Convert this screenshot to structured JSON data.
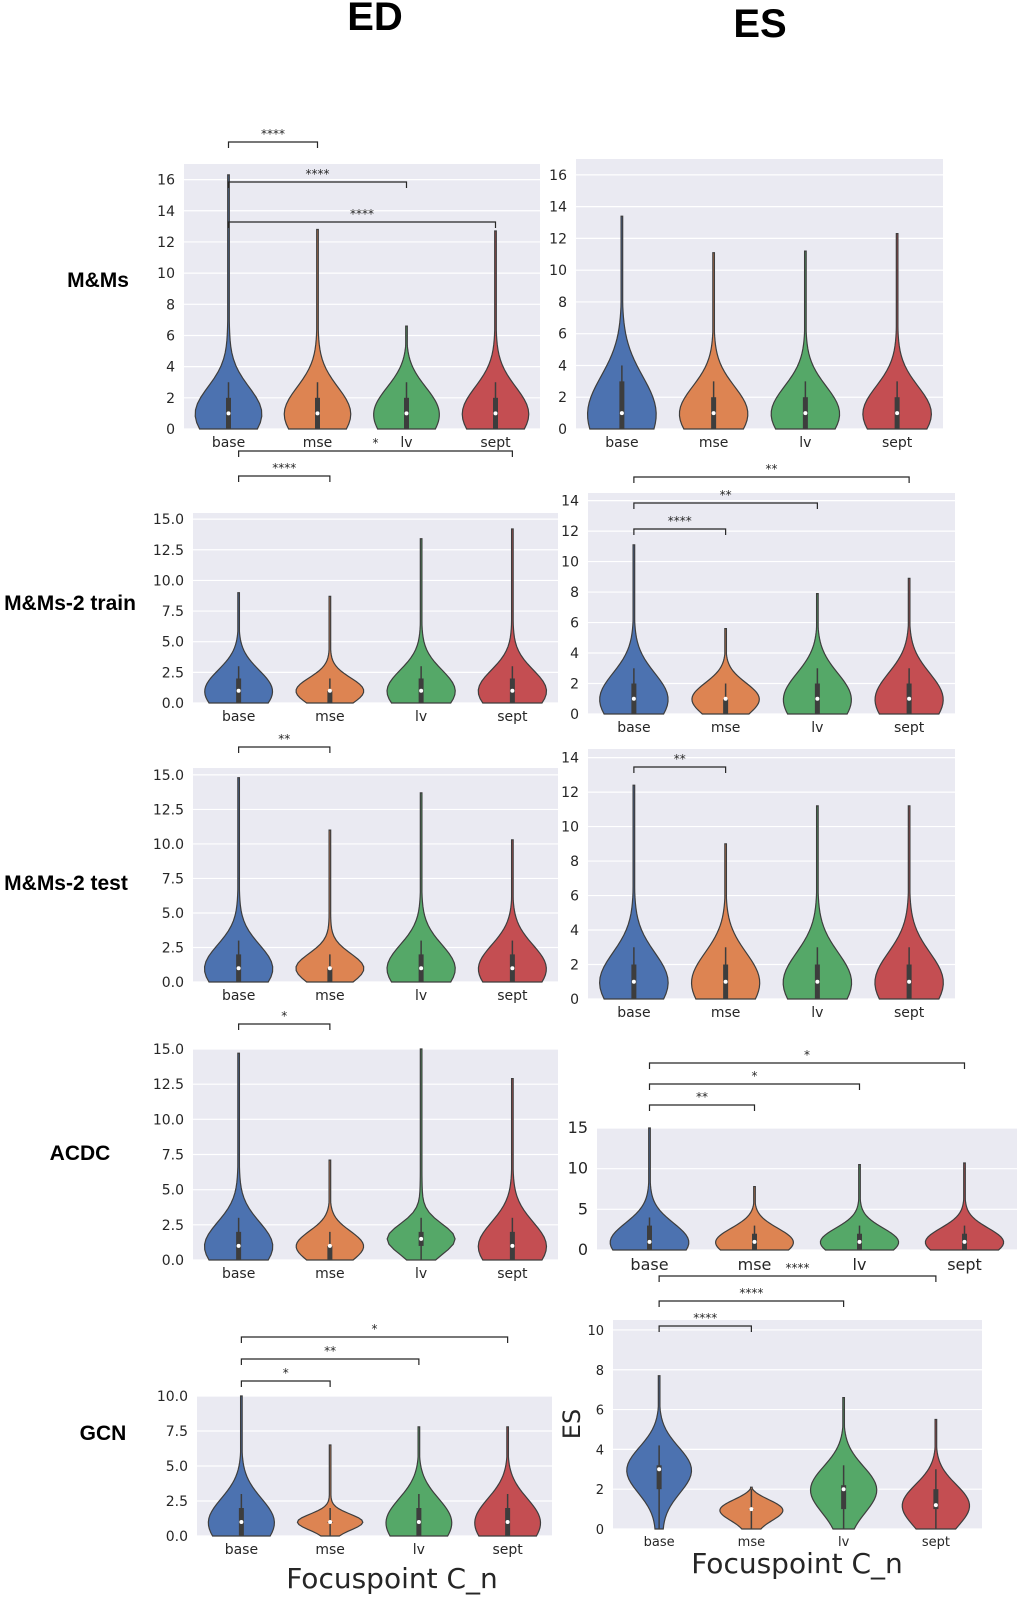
{
  "headers": {
    "ed": "ED",
    "es": "ES"
  },
  "row_labels": [
    "M&Ms",
    "M&Ms-2 train",
    "M&Ms-2 test",
    "ACDC",
    "GCN"
  ],
  "footer": {
    "xlabel_ed": "Focuspoint C_n",
    "xlabel_es": "Focuspoint C_n",
    "ylabel_es_gcn": "ES"
  },
  "colors": {
    "base": "#4c72b0",
    "mse": "#dd8452",
    "lv": "#55a868",
    "sept": "#c44e52",
    "panel_bg": "#eaeaf2",
    "grid": "#ffffff"
  },
  "chart_data": [
    {
      "id": "mms-ed",
      "type": "violin",
      "categories": [
        "base",
        "mse",
        "lv",
        "sept"
      ],
      "ylim": [
        0,
        17
      ],
      "yticks": [
        "0",
        "2",
        "4",
        "6",
        "8",
        "10",
        "12",
        "14",
        "16"
      ],
      "ytick_values": [
        0,
        2,
        4,
        6,
        8,
        10,
        12,
        14,
        16
      ],
      "series": [
        {
          "name": "base",
          "max": 16.3,
          "median": 1,
          "q1": 0,
          "q3": 2
        },
        {
          "name": "mse",
          "max": 12.8,
          "median": 1,
          "q1": 0,
          "q3": 2
        },
        {
          "name": "lv",
          "max": 6.6,
          "median": 1,
          "q1": 0,
          "q3": 2
        },
        {
          "name": "sept",
          "max": 12.7,
          "median": 1,
          "q1": 0,
          "q3": 2
        }
      ],
      "brackets": [
        {
          "from": "base",
          "to": "mse",
          "label": "****"
        },
        {
          "from": "base",
          "to": "lv",
          "label": "****"
        },
        {
          "from": "base",
          "to": "sept",
          "label": "****"
        }
      ]
    },
    {
      "id": "mms-es",
      "type": "violin",
      "categories": [
        "base",
        "mse",
        "lv",
        "sept"
      ],
      "ylim": [
        0,
        17
      ],
      "yticks": [
        "0",
        "2",
        "4",
        "6",
        "8",
        "10",
        "12",
        "14",
        "16"
      ],
      "ytick_values": [
        0,
        2,
        4,
        6,
        8,
        10,
        12,
        14,
        16
      ],
      "series": [
        {
          "name": "base",
          "max": 13.4,
          "median": 1,
          "q1": 0,
          "q3": 3
        },
        {
          "name": "mse",
          "max": 11.1,
          "median": 1,
          "q1": 0,
          "q3": 2
        },
        {
          "name": "lv",
          "max": 11.2,
          "median": 1,
          "q1": 0,
          "q3": 2
        },
        {
          "name": "sept",
          "max": 12.3,
          "median": 1,
          "q1": 0,
          "q3": 2
        }
      ],
      "brackets": []
    },
    {
      "id": "mms2train-ed",
      "type": "violin",
      "categories": [
        "base",
        "mse",
        "lv",
        "sept"
      ],
      "ylim": [
        0,
        15.5
      ],
      "yticks": [
        "0.0",
        "2.5",
        "5.0",
        "7.5",
        "10.0",
        "12.5",
        "15.0"
      ],
      "ytick_values": [
        0,
        2.5,
        5,
        7.5,
        10,
        12.5,
        15
      ],
      "series": [
        {
          "name": "base",
          "max": 9.0,
          "median": 1,
          "q1": 0,
          "q3": 2
        },
        {
          "name": "mse",
          "max": 8.7,
          "median": 1,
          "q1": 0,
          "q3": 1
        },
        {
          "name": "lv",
          "max": 13.4,
          "median": 1,
          "q1": 0,
          "q3": 2
        },
        {
          "name": "sept",
          "max": 14.2,
          "median": 1,
          "q1": 0,
          "q3": 2
        }
      ],
      "brackets": [
        {
          "from": "base",
          "to": "mse",
          "label": "****"
        },
        {
          "from": "base",
          "to": "sept",
          "label": "*"
        }
      ]
    },
    {
      "id": "mms2train-es",
      "type": "violin",
      "categories": [
        "base",
        "mse",
        "lv",
        "sept"
      ],
      "ylim": [
        0,
        14.5
      ],
      "yticks": [
        "0",
        "2",
        "4",
        "6",
        "8",
        "10",
        "12",
        "14"
      ],
      "ytick_values": [
        0,
        2,
        4,
        6,
        8,
        10,
        12,
        14
      ],
      "series": [
        {
          "name": "base",
          "max": 11.1,
          "median": 1,
          "q1": 0,
          "q3": 2
        },
        {
          "name": "mse",
          "max": 5.6,
          "median": 1,
          "q1": 0,
          "q3": 1
        },
        {
          "name": "lv",
          "max": 7.9,
          "median": 1,
          "q1": 0,
          "q3": 2
        },
        {
          "name": "sept",
          "max": 8.9,
          "median": 1,
          "q1": 0,
          "q3": 2
        }
      ],
      "brackets": [
        {
          "from": "base",
          "to": "mse",
          "label": "****"
        },
        {
          "from": "base",
          "to": "lv",
          "label": "**"
        },
        {
          "from": "base",
          "to": "sept",
          "label": "**"
        }
      ]
    },
    {
      "id": "mms2test-ed",
      "type": "violin",
      "categories": [
        "base",
        "mse",
        "lv",
        "sept"
      ],
      "ylim": [
        0,
        15.5
      ],
      "yticks": [
        "0.0",
        "2.5",
        "5.0",
        "7.5",
        "10.0",
        "12.5",
        "15.0"
      ],
      "ytick_values": [
        0,
        2.5,
        5,
        7.5,
        10,
        12.5,
        15
      ],
      "series": [
        {
          "name": "base",
          "max": 14.8,
          "median": 1,
          "q1": 0,
          "q3": 2
        },
        {
          "name": "mse",
          "max": 11.0,
          "median": 1,
          "q1": 0,
          "q3": 1
        },
        {
          "name": "lv",
          "max": 13.7,
          "median": 1,
          "q1": 0,
          "q3": 2
        },
        {
          "name": "sept",
          "max": 10.3,
          "median": 1,
          "q1": 0,
          "q3": 2
        }
      ],
      "brackets": [
        {
          "from": "base",
          "to": "mse",
          "label": "**"
        }
      ]
    },
    {
      "id": "mms2test-es",
      "type": "violin",
      "categories": [
        "base",
        "mse",
        "lv",
        "sept"
      ],
      "ylim": [
        0,
        14.5
      ],
      "yticks": [
        "0",
        "2",
        "4",
        "6",
        "8",
        "10",
        "12",
        "14"
      ],
      "ytick_values": [
        0,
        2,
        4,
        6,
        8,
        10,
        12,
        14
      ],
      "series": [
        {
          "name": "base",
          "max": 12.4,
          "median": 1,
          "q1": 0,
          "q3": 2
        },
        {
          "name": "mse",
          "max": 9.0,
          "median": 1,
          "q1": 0,
          "q3": 2
        },
        {
          "name": "lv",
          "max": 11.2,
          "median": 1,
          "q1": 0,
          "q3": 2
        },
        {
          "name": "sept",
          "max": 11.2,
          "median": 1,
          "q1": 0,
          "q3": 2
        }
      ],
      "brackets": [
        {
          "from": "base",
          "to": "mse",
          "label": "**"
        }
      ]
    },
    {
      "id": "acdc-ed",
      "type": "violin",
      "categories": [
        "base",
        "mse",
        "lv",
        "sept"
      ],
      "ylim": [
        0,
        15
      ],
      "yticks": [
        "0.0",
        "2.5",
        "5.0",
        "7.5",
        "10.0",
        "12.5",
        "15.0"
      ],
      "ytick_values": [
        0,
        2.5,
        5,
        7.5,
        10,
        12.5,
        15
      ],
      "series": [
        {
          "name": "base",
          "max": 14.7,
          "median": 1,
          "q1": 0,
          "q3": 2
        },
        {
          "name": "mse",
          "max": 7.1,
          "median": 1,
          "q1": 0,
          "q3": 1
        },
        {
          "name": "lv",
          "max": 15.0,
          "median": 1.5,
          "q1": 1,
          "q3": 2
        },
        {
          "name": "sept",
          "max": 12.9,
          "median": 1,
          "q1": 0,
          "q3": 2
        }
      ],
      "brackets": [
        {
          "from": "base",
          "to": "mse",
          "label": "*"
        }
      ]
    },
    {
      "id": "acdc-es",
      "type": "violin",
      "categories": [
        "base",
        "mse",
        "lv",
        "sept"
      ],
      "ylim": [
        0,
        15
      ],
      "yticks": [
        "0",
        "5",
        "10",
        "15"
      ],
      "ytick_values": [
        0,
        5,
        10,
        15
      ],
      "series": [
        {
          "name": "base",
          "max": 15.0,
          "median": 1,
          "q1": 0,
          "q3": 3
        },
        {
          "name": "mse",
          "max": 7.8,
          "median": 1,
          "q1": 0,
          "q3": 2
        },
        {
          "name": "lv",
          "max": 10.5,
          "median": 1,
          "q1": 0,
          "q3": 2
        },
        {
          "name": "sept",
          "max": 10.7,
          "median": 1,
          "q1": 0,
          "q3": 2
        }
      ],
      "brackets": [
        {
          "from": "base",
          "to": "mse",
          "label": "**"
        },
        {
          "from": "base",
          "to": "lv",
          "label": "*"
        },
        {
          "from": "base",
          "to": "sept",
          "label": "*"
        }
      ]
    },
    {
      "id": "gcn-ed",
      "type": "violin",
      "categories": [
        "base",
        "mse",
        "lv",
        "sept"
      ],
      "ylim": [
        0,
        10
      ],
      "yticks": [
        "0.0",
        "2.5",
        "5.0",
        "7.5",
        "10.0"
      ],
      "ytick_values": [
        0,
        2.5,
        5,
        7.5,
        10
      ],
      "series": [
        {
          "name": "base",
          "max": 10.0,
          "median": 1,
          "q1": 0,
          "q3": 2
        },
        {
          "name": "mse",
          "max": 6.5,
          "median": 1,
          "q1": 1,
          "q3": 1
        },
        {
          "name": "lv",
          "max": 7.8,
          "median": 1,
          "q1": 0,
          "q3": 2
        },
        {
          "name": "sept",
          "max": 7.8,
          "median": 1,
          "q1": 0,
          "q3": 2
        }
      ],
      "brackets": [
        {
          "from": "base",
          "to": "mse",
          "label": "*"
        },
        {
          "from": "base",
          "to": "lv",
          "label": "**"
        },
        {
          "from": "base",
          "to": "sept",
          "label": "*"
        }
      ]
    },
    {
      "id": "gcn-es",
      "type": "violin",
      "categories": [
        "base",
        "mse",
        "lv",
        "sept"
      ],
      "ylim": [
        0,
        10.5
      ],
      "yticks": [
        "0",
        "2",
        "4",
        "6",
        "8",
        "10"
      ],
      "ytick_values": [
        0,
        2,
        4,
        6,
        8,
        10
      ],
      "series": [
        {
          "name": "base",
          "max": 7.7,
          "median": 3,
          "q1": 2,
          "q3": 3.2
        },
        {
          "name": "mse",
          "max": 2.1,
          "median": 1,
          "q1": 1,
          "q3": 1
        },
        {
          "name": "lv",
          "max": 6.6,
          "median": 2,
          "q1": 1,
          "q3": 2.2
        },
        {
          "name": "sept",
          "max": 5.5,
          "median": 1.2,
          "q1": 1,
          "q3": 2
        }
      ],
      "brackets": [
        {
          "from": "base",
          "to": "mse",
          "label": "****"
        },
        {
          "from": "base",
          "to": "lv",
          "label": "****"
        },
        {
          "from": "base",
          "to": "sept",
          "label": "****"
        }
      ]
    }
  ]
}
